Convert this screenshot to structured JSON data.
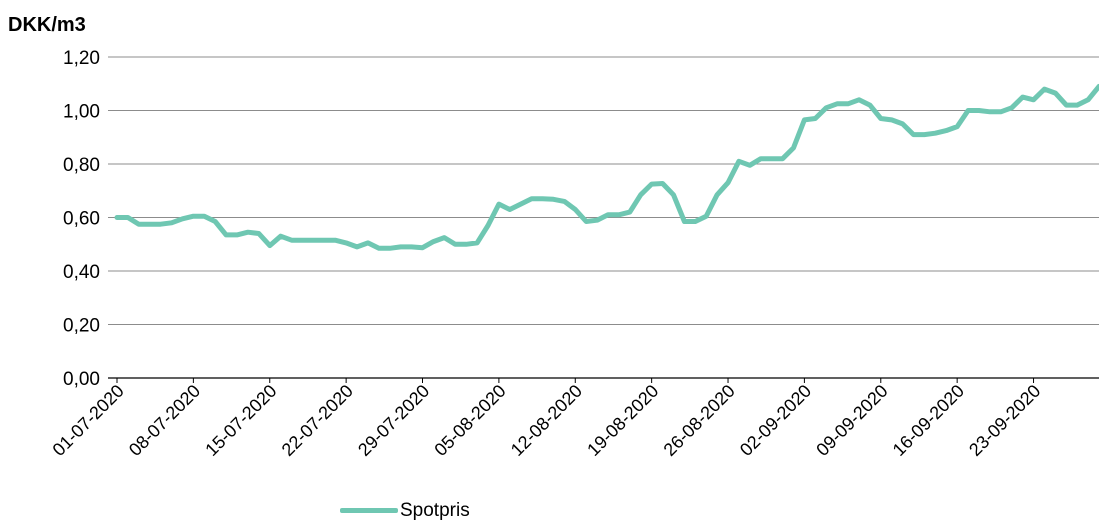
{
  "chart_data": {
    "type": "line",
    "ylabel": "DKK/m3",
    "ylim": [
      0,
      1.2
    ],
    "yticks": [
      "0,00",
      "0,20",
      "0,40",
      "0,60",
      "0,80",
      "1,00",
      "1,20"
    ],
    "xtick_labels": [
      "01-07-2020",
      "08-07-2020",
      "15-07-2020",
      "22-07-2020",
      "29-07-2020",
      "05-08-2020",
      "12-08-2020",
      "19-08-2020",
      "26-08-2020",
      "02-09-2020",
      "09-09-2020",
      "16-09-2020",
      "23-09-2020"
    ],
    "grid": true,
    "legend": "bottom",
    "color": "#6fc7b2",
    "series": [
      {
        "name": "Spotpris",
        "x_start": "2020-07-01",
        "values": [
          0.6,
          0.6,
          0.575,
          0.575,
          0.575,
          0.58,
          0.595,
          0.605,
          0.605,
          0.585,
          0.535,
          0.535,
          0.545,
          0.54,
          0.495,
          0.53,
          0.515,
          0.515,
          0.515,
          0.515,
          0.515,
          0.505,
          0.49,
          0.505,
          0.485,
          0.485,
          0.49,
          0.49,
          0.487,
          0.51,
          0.525,
          0.5,
          0.5,
          0.505,
          0.57,
          0.65,
          0.63,
          0.65,
          0.67,
          0.67,
          0.668,
          0.66,
          0.63,
          0.585,
          0.59,
          0.61,
          0.61,
          0.62,
          0.685,
          0.725,
          0.727,
          0.685,
          0.585,
          0.585,
          0.605,
          0.685,
          0.73,
          0.81,
          0.795,
          0.82,
          0.82,
          0.82,
          0.86,
          0.965,
          0.97,
          1.01,
          1.025,
          1.025,
          1.04,
          1.02,
          0.97,
          0.965,
          0.95,
          0.91,
          0.91,
          0.915,
          0.925,
          0.94,
          1.0,
          1.0,
          0.995,
          0.995,
          1.01,
          1.05,
          1.04,
          1.08,
          1.065,
          1.02,
          1.02,
          1.04,
          1.09
        ]
      }
    ]
  }
}
